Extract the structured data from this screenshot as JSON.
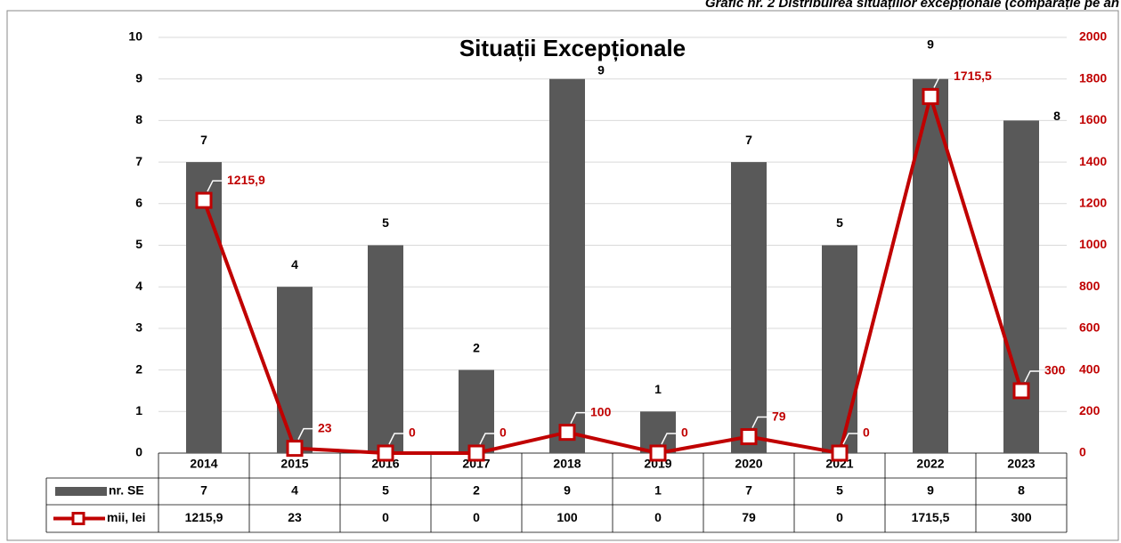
{
  "caption": "Grafic nr. 2 Distribuirea situațiilor excepționale (comparație pe an",
  "chart_data": {
    "type": "bar",
    "title": "Situații Excepționale",
    "categories": [
      "2014",
      "2015",
      "2016",
      "2017",
      "2018",
      "2019",
      "2020",
      "2021",
      "2022",
      "2023"
    ],
    "series": [
      {
        "name": "nr. SE",
        "color": "#595959",
        "type": "bar",
        "values": [
          7,
          4,
          5,
          2,
          9,
          1,
          7,
          5,
          9,
          8
        ]
      },
      {
        "name": "mii, lei",
        "color": "#c00000",
        "type": "line",
        "axis": "y2",
        "values": [
          1215.9,
          23,
          0,
          0,
          100,
          0,
          79,
          0,
          1715.5,
          300
        ],
        "value_labels": [
          "1215,9",
          "23",
          "0",
          "0",
          "100",
          "0",
          "79",
          "0",
          "1715,5",
          "300"
        ]
      }
    ],
    "ylim": [
      0,
      10
    ],
    "yticks": [
      0,
      1,
      2,
      3,
      4,
      5,
      6,
      7,
      8,
      9,
      10
    ],
    "y2lim": [
      0,
      2000
    ],
    "y2ticks": [
      0,
      200,
      400,
      600,
      800,
      1000,
      1200,
      1400,
      1600,
      1800,
      2000
    ],
    "grid": true,
    "data_table": true
  }
}
